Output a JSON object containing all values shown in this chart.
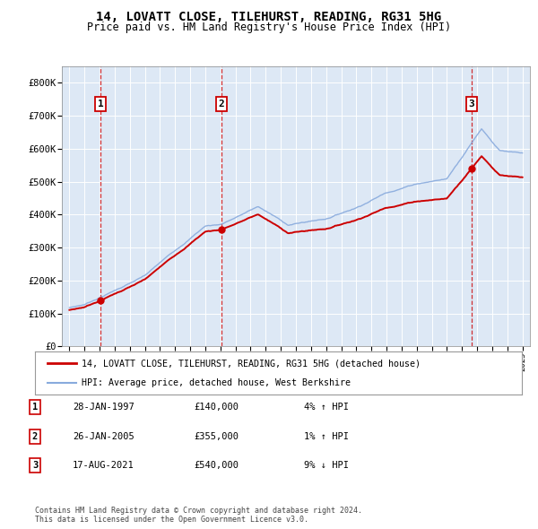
{
  "title": "14, LOVATT CLOSE, TILEHURST, READING, RG31 5HG",
  "subtitle": "Price paid vs. HM Land Registry's House Price Index (HPI)",
  "xlim": [
    1994.5,
    2025.5
  ],
  "ylim": [
    0,
    850000
  ],
  "yticks": [
    0,
    100000,
    200000,
    300000,
    400000,
    500000,
    600000,
    700000,
    800000
  ],
  "ytick_labels": [
    "£0",
    "£100K",
    "£200K",
    "£300K",
    "£400K",
    "£500K",
    "£600K",
    "£700K",
    "£800K"
  ],
  "xticks": [
    1995,
    1996,
    1997,
    1998,
    1999,
    2000,
    2001,
    2002,
    2003,
    2004,
    2005,
    2006,
    2007,
    2008,
    2009,
    2010,
    2011,
    2012,
    2013,
    2014,
    2015,
    2016,
    2017,
    2018,
    2019,
    2020,
    2021,
    2022,
    2023,
    2024,
    2025
  ],
  "sales": [
    {
      "year": 1997.07,
      "price": 140000,
      "label": "1"
    },
    {
      "year": 2005.07,
      "price": 355000,
      "label": "2"
    },
    {
      "year": 2021.63,
      "price": 540000,
      "label": "3"
    }
  ],
  "sale_info": [
    {
      "num": "1",
      "date": "28-JAN-1997",
      "price": "£140,000",
      "pct": "4% ↑ HPI"
    },
    {
      "num": "2",
      "date": "26-JAN-2005",
      "price": "£355,000",
      "pct": "1% ↑ HPI"
    },
    {
      "num": "3",
      "date": "17-AUG-2021",
      "price": "£540,000",
      "pct": "9% ↓ HPI"
    }
  ],
  "legend_line1": "14, LOVATT CLOSE, TILEHURST, READING, RG31 5HG (detached house)",
  "legend_line2": "HPI: Average price, detached house, West Berkshire",
  "footer": "Contains HM Land Registry data © Crown copyright and database right 2024.\nThis data is licensed under the Open Government Licence v3.0.",
  "prop_color": "#cc0000",
  "hpi_color": "#88aadd",
  "plot_bg": "#dde8f5",
  "grid_color": "#ffffff"
}
